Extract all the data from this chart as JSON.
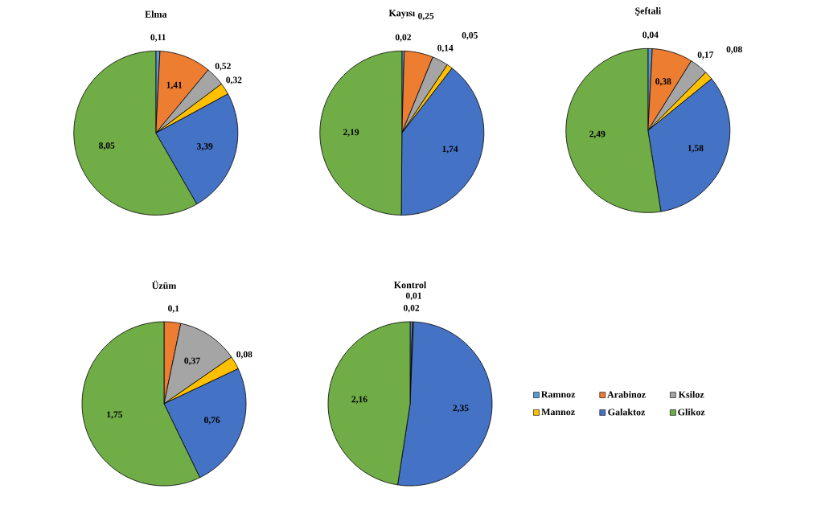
{
  "chart_data": [
    {
      "type": "pie",
      "title": "Elma",
      "values": [
        0.11,
        1.41,
        0.52,
        0.32,
        3.39,
        8.05
      ],
      "value_labels": [
        "0,11",
        "1,41",
        "0,52",
        "0,32",
        "3,39",
        "8,05"
      ],
      "colors": [
        "#5b9bd5",
        "#ed7d31",
        "#a5a5a5",
        "#ffc000",
        "#4472c4",
        "#70ad47"
      ]
    },
    {
      "type": "pie",
      "title": "Kayısı",
      "values": [
        0.02,
        0.25,
        0.14,
        0.05,
        1.74,
        2.19
      ],
      "value_labels": [
        "0,02",
        "0,25",
        "0,14",
        "0,05",
        "1,74",
        "2,19"
      ],
      "colors": [
        "#5b9bd5",
        "#ed7d31",
        "#a5a5a5",
        "#ffc000",
        "#4472c4",
        "#70ad47"
      ]
    },
    {
      "type": "pie",
      "title": "Şeftali",
      "values": [
        0.04,
        0.38,
        0.17,
        0.08,
        1.58,
        2.49
      ],
      "value_labels": [
        "0,04",
        "0,38",
        "0,17",
        "0,08",
        "1,58",
        "2,49"
      ],
      "colors": [
        "#5b9bd5",
        "#ed7d31",
        "#a5a5a5",
        "#ffc000",
        "#4472c4",
        "#70ad47"
      ]
    },
    {
      "type": "pie",
      "title": "Üzüm",
      "values": [
        null,
        0.1,
        0.37,
        0.08,
        0.76,
        1.75
      ],
      "value_labels": [
        null,
        "0,1",
        "0,37",
        "0,08",
        "0,76",
        "1,75"
      ],
      "colors": [
        "#5b9bd5",
        "#ed7d31",
        "#a5a5a5",
        "#ffc000",
        "#4472c4",
        "#70ad47"
      ]
    },
    {
      "type": "pie",
      "title": "Kontrol",
      "categories": [
        "Ramnoz",
        "Arabinoz",
        "Ksiloz",
        "Mannoz",
        "Galaktoz",
        "Glikoz"
      ],
      "values": [
        0.02,
        0.01,
        null,
        null,
        2.35,
        2.16
      ],
      "value_labels": [
        "0,02",
        "0,01",
        null,
        null,
        "2,35",
        "2,16"
      ],
      "colors": [
        "#5b9bd5",
        "#ed7d31",
        "#a5a5a5",
        "#ffc000",
        "#4472c4",
        "#70ad47"
      ],
      "legend": "right"
    }
  ]
}
